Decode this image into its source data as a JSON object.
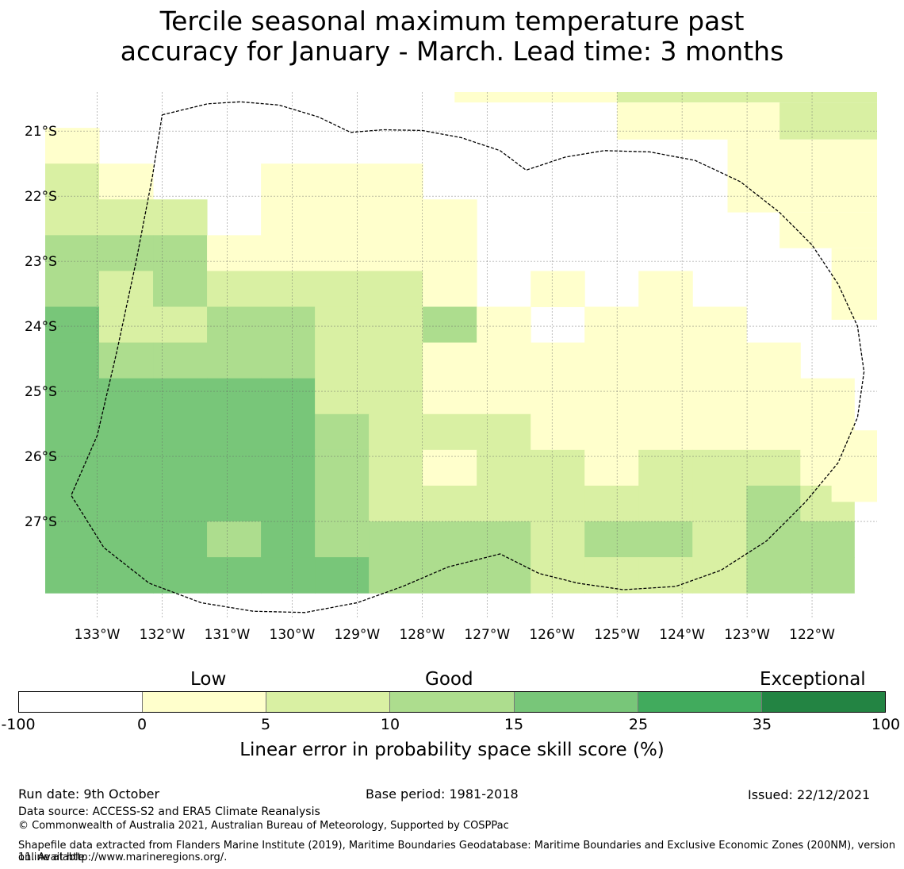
{
  "title": {
    "line1": "Tercile seasonal maximum temperature past",
    "line2": "accuracy for January - March. Lead time: 3 months"
  },
  "map": {
    "lon_labels": [
      "133°W",
      "132°W",
      "131°W",
      "130°W",
      "129°W",
      "128°W",
      "127°W",
      "126°W",
      "125°W",
      "124°W",
      "123°W",
      "122°W"
    ],
    "lat_labels": [
      "21°S",
      "22°S",
      "23°S",
      "24°S",
      "25°S",
      "26°S",
      "27°S"
    ],
    "lon_range": [
      -133.8,
      -121.0
    ],
    "lat_range": [
      -20.4,
      -28.5
    ],
    "grid_origin": {
      "lon": -133.8,
      "lat": -20.4
    },
    "cell_deg": {
      "lon": 0.83,
      "lat": 0.55
    },
    "colors": [
      "#ffffff",
      "#ffffcc",
      "#d9f0a3",
      "#addd8e",
      "#78c679",
      "#41ab5d",
      "#238443"
    ],
    "grid": [
      [
        0,
        0,
        0,
        0,
        0,
        0,
        0,
        0,
        0,
        0,
        0,
        0,
        0,
        0,
        0
      ],
      [
        1,
        0,
        0,
        0,
        0,
        0,
        0,
        0,
        0,
        0,
        0,
        0,
        0,
        0,
        0
      ],
      [
        2,
        1,
        0,
        0,
        1,
        1,
        1,
        0,
        0,
        0,
        0,
        0,
        0,
        0,
        0
      ],
      [
        2,
        2,
        2,
        0,
        1,
        1,
        1,
        1,
        0,
        0,
        0,
        0,
        0,
        0,
        0
      ],
      [
        3,
        3,
        3,
        1,
        1,
        1,
        1,
        1,
        0,
        0,
        0,
        0,
        0,
        0,
        0
      ],
      [
        3,
        2,
        3,
        2,
        2,
        2,
        2,
        1,
        0,
        1,
        0,
        1,
        0,
        0,
        0
      ],
      [
        4,
        2,
        2,
        3,
        3,
        2,
        2,
        3,
        1,
        0,
        1,
        1,
        1,
        0,
        0
      ],
      [
        4,
        3,
        3,
        3,
        3,
        2,
        2,
        1,
        1,
        1,
        1,
        1,
        1,
        1,
        0
      ],
      [
        4,
        4,
        4,
        4,
        4,
        2,
        2,
        1,
        1,
        1,
        1,
        1,
        1,
        1,
        1
      ],
      [
        4,
        4,
        4,
        4,
        4,
        3,
        2,
        2,
        2,
        1,
        1,
        1,
        1,
        1,
        1
      ],
      [
        4,
        4,
        4,
        4,
        4,
        3,
        2,
        1,
        2,
        2,
        1,
        2,
        2,
        2,
        1
      ],
      [
        4,
        4,
        4,
        4,
        4,
        3,
        2,
        2,
        2,
        2,
        2,
        2,
        2,
        3,
        2
      ],
      [
        4,
        4,
        4,
        3,
        4,
        3,
        3,
        3,
        3,
        2,
        3,
        3,
        2,
        3,
        3
      ],
      [
        4,
        4,
        4,
        4,
        4,
        4,
        3,
        3,
        3,
        2,
        2,
        2,
        2,
        3,
        3
      ]
    ],
    "top_strip": [
      {
        "lon0": -127.5,
        "lon1": -125.0,
        "lat0": -20.4,
        "lat1": -20.56,
        "level": 1
      },
      {
        "lon0": -125.0,
        "lon1": -121.0,
        "lat0": -20.4,
        "lat1": -20.56,
        "level": 2
      },
      {
        "lon0": -125.0,
        "lon1": -122.5,
        "lat0": -20.56,
        "lat1": -21.13,
        "level": 1
      },
      {
        "lon0": -122.5,
        "lon1": -121.0,
        "lat0": -20.56,
        "lat1": -21.13,
        "level": 2
      },
      {
        "lon0": -123.3,
        "lon1": -121.0,
        "lat0": -21.13,
        "lat1": -22.25,
        "level": 1
      },
      {
        "lon0": -122.5,
        "lon1": -121.0,
        "lat0": -22.25,
        "lat1": -22.8,
        "level": 1
      },
      {
        "lon0": -121.7,
        "lon1": -121.0,
        "lat0": -22.8,
        "lat1": -23.9,
        "level": 1
      },
      {
        "lon0": -121.7,
        "lon1": -121.0,
        "lat0": -25.6,
        "lat1": -26.7,
        "level": 1
      }
    ],
    "eez_boundary": [
      [
        -132.0,
        -20.75
      ],
      [
        -131.3,
        -20.58
      ],
      [
        -130.8,
        -20.55
      ],
      [
        -130.2,
        -20.6
      ],
      [
        -129.6,
        -20.78
      ],
      [
        -129.1,
        -21.02
      ],
      [
        -128.6,
        -20.98
      ],
      [
        -128.0,
        -20.99
      ],
      [
        -127.4,
        -21.1
      ],
      [
        -126.8,
        -21.3
      ],
      [
        -126.4,
        -21.6
      ],
      [
        -125.8,
        -21.4
      ],
      [
        -125.2,
        -21.3
      ],
      [
        -124.5,
        -21.32
      ],
      [
        -123.8,
        -21.45
      ],
      [
        -123.1,
        -21.78
      ],
      [
        -122.5,
        -22.25
      ],
      [
        -122.0,
        -22.75
      ],
      [
        -121.6,
        -23.35
      ],
      [
        -121.3,
        -24.0
      ],
      [
        -121.2,
        -24.7
      ],
      [
        -121.3,
        -25.4
      ],
      [
        -121.6,
        -26.1
      ],
      [
        -122.1,
        -26.7
      ],
      [
        -122.7,
        -27.3
      ],
      [
        -123.4,
        -27.75
      ],
      [
        -124.1,
        -28.0
      ],
      [
        -124.9,
        -28.05
      ],
      [
        -125.6,
        -27.95
      ],
      [
        -126.2,
        -27.8
      ],
      [
        -126.8,
        -27.5
      ],
      [
        -127.6,
        -27.7
      ],
      [
        -128.3,
        -28.0
      ],
      [
        -129.0,
        -28.25
      ],
      [
        -129.8,
        -28.4
      ],
      [
        -130.6,
        -28.38
      ],
      [
        -131.4,
        -28.25
      ],
      [
        -132.2,
        -27.95
      ],
      [
        -132.9,
        -27.4
      ],
      [
        -133.4,
        -26.6
      ],
      [
        -133.0,
        -25.68
      ],
      [
        -132.7,
        -24.4
      ],
      [
        -132.4,
        -23.0
      ],
      [
        -132.15,
        -21.7
      ],
      [
        -132.0,
        -20.75
      ]
    ]
  },
  "colorbar": {
    "category_low": "Low",
    "category_good": "Good",
    "category_exceptional": "Exceptional",
    "ticks": [
      "-100",
      "0",
      "5",
      "10",
      "15",
      "25",
      "35",
      "100"
    ],
    "label": "Linear error in probability space skill score (%)",
    "colors": [
      "#ffffff",
      "#ffffcc",
      "#d9f0a3",
      "#addd8e",
      "#78c679",
      "#41ab5d",
      "#238443"
    ]
  },
  "footer": {
    "run_date": "Run date: 9th October",
    "base_period": "Base period: 1981-2018",
    "issued": "Issued: 22/12/2021",
    "data_source": "Data source: ACCESS-S2 and ERA5 Climate Reanalysis",
    "copyright": "© Commonwealth of Australia 2021, Australian Bureau of Meteorology, Supported by COSPPac",
    "shapefile_line1": "Shapefile data extracted from Flanders Marine Institute (2019), Maritime Boundaries Geodatabase: Maritime Boundaries and Exclusive Economic Zones (200NM), version 11. Available",
    "shapefile_line2": "online at http://www.marineregions.org/."
  }
}
